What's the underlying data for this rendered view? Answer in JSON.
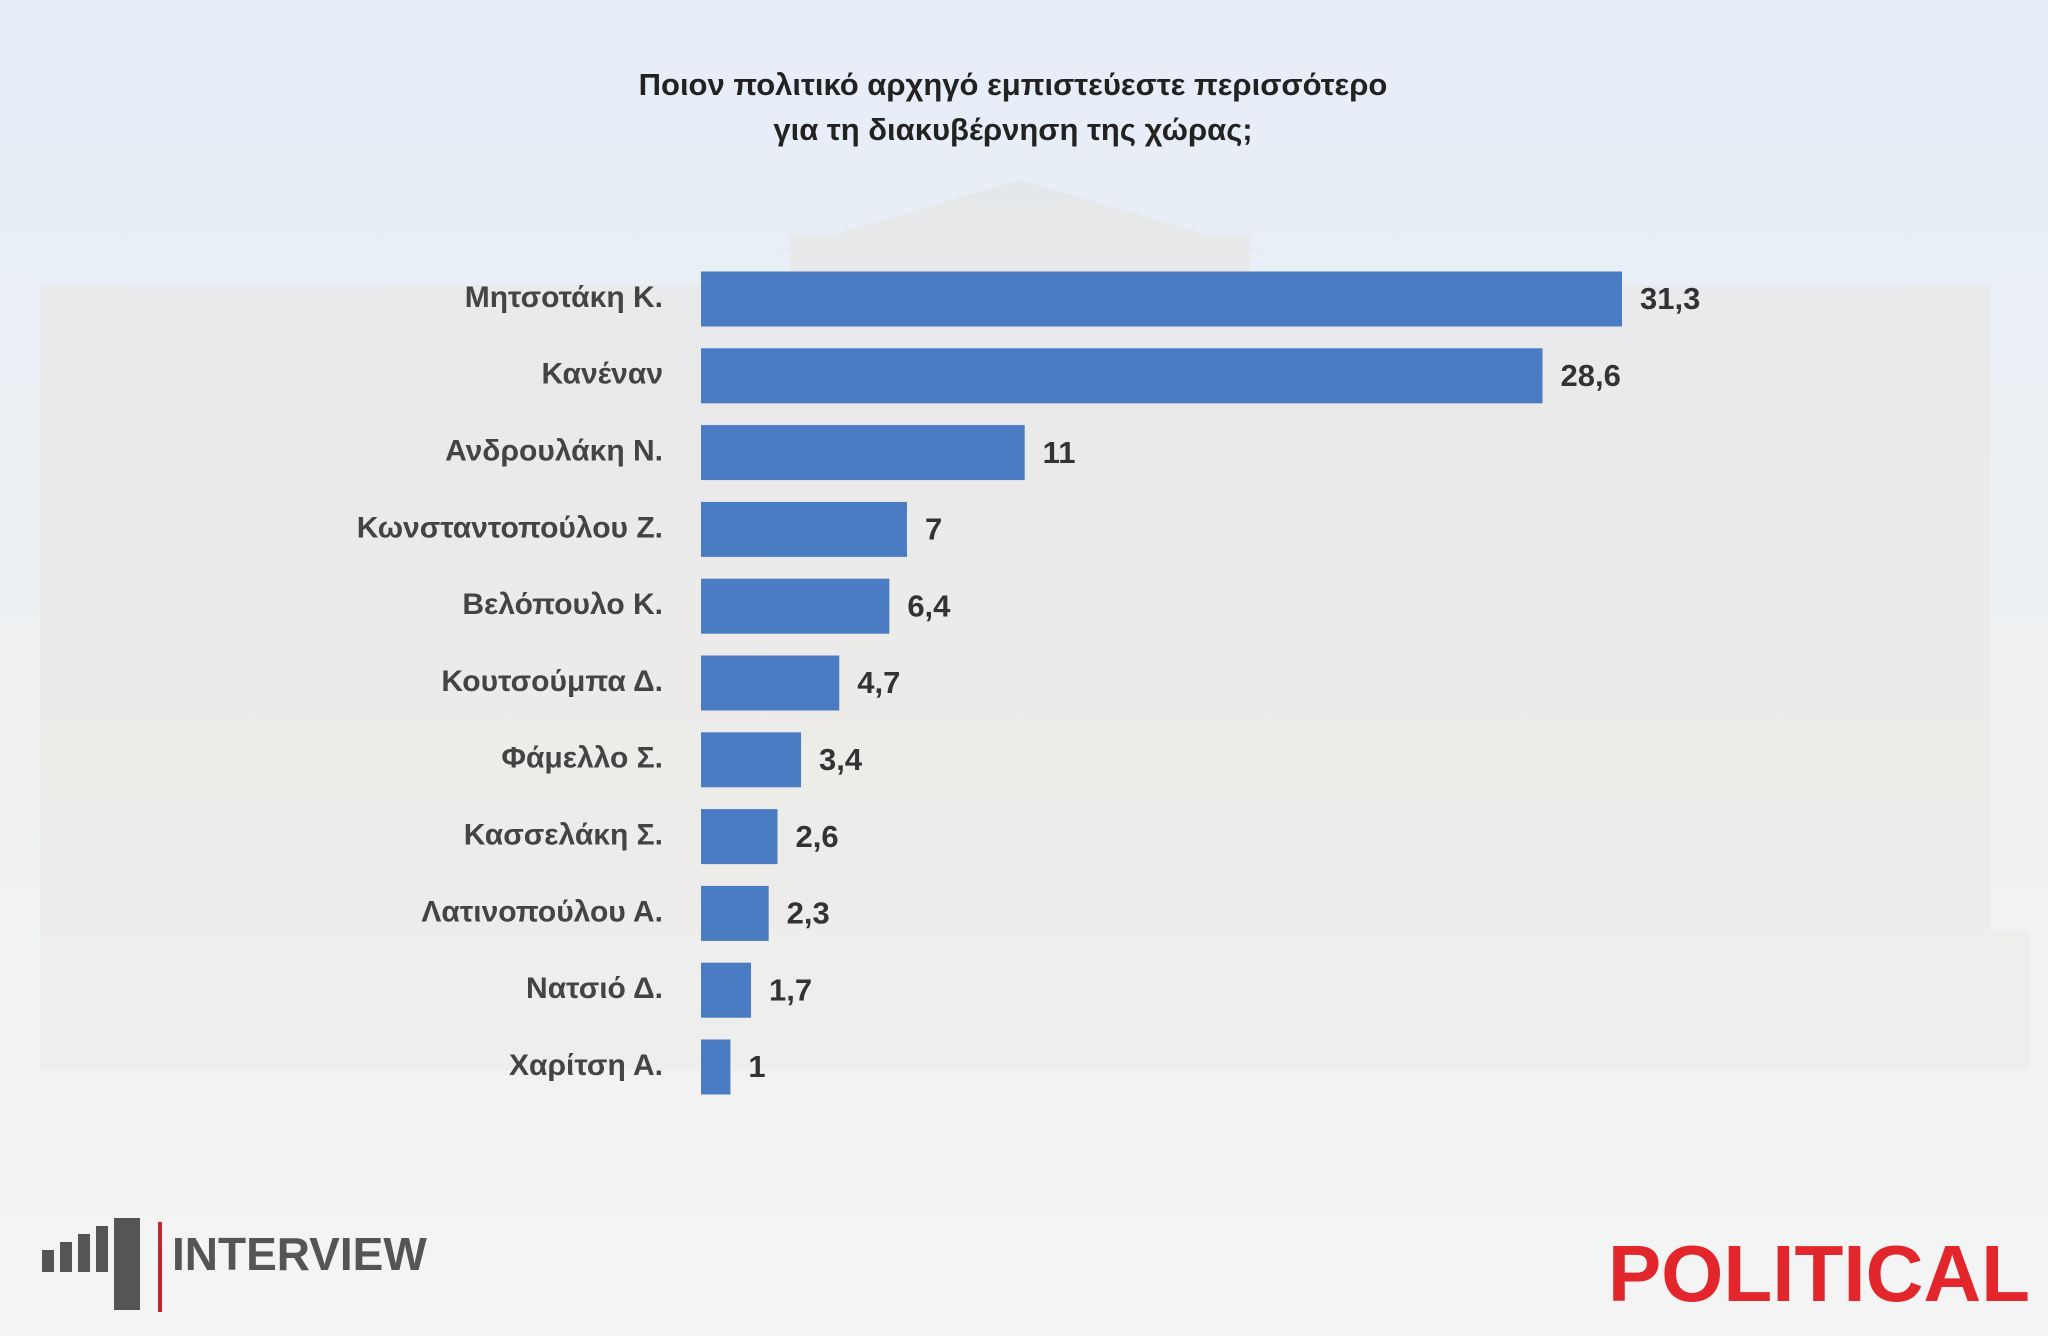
{
  "chart_data": {
    "type": "barh",
    "title": [
      "Ποιον πολιτικό αρχηγό εμπιστεύεστε περισσότερο",
      "για τη διακυβέρνηση της χώρας;"
    ],
    "categories": [
      "Μητσοτάκη Κ.",
      "Κανέναν",
      "Ανδρουλάκη Ν.",
      "Κωνσταντοπούλου Ζ.",
      "Βελόπουλο Κ.",
      "Κουτσούμπα Δ.",
      "Φάμελλο Σ.",
      "Κασσελάκη Σ.",
      "Λατινοπούλου Α.",
      "Νατσιό Δ.",
      "Χαρίτση Α."
    ],
    "values": [
      31.3,
      28.6,
      11,
      7,
      6.4,
      4.7,
      3.4,
      2.6,
      2.3,
      1.7,
      1
    ],
    "value_labels": [
      "31,3",
      "28,6",
      "11",
      "7",
      "6,4",
      "4,7",
      "3,4",
      "2,6",
      "2,3",
      "1,7",
      "1"
    ],
    "color": "#4a7cc4"
  },
  "logos": {
    "left": "INTERVIEW",
    "right": "POLITICAL"
  }
}
